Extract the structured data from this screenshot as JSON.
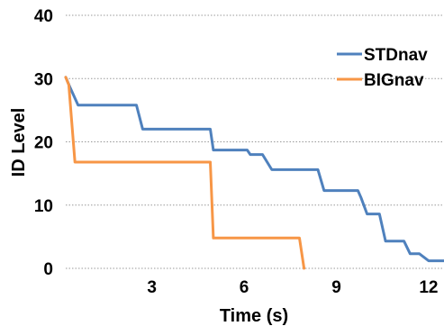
{
  "chart_data": {
    "type": "line",
    "title": "",
    "xlabel": "Time (s)",
    "ylabel": "ID Level",
    "xlim": [
      0.2,
      12.5
    ],
    "ylim": [
      0,
      40
    ],
    "xticks": [
      3,
      6,
      9,
      12
    ],
    "yticks": [
      0,
      10,
      20,
      30,
      40
    ],
    "grid": "horizontal dotted",
    "legend": "right",
    "series": [
      {
        "name": "STDnav",
        "color": "#4F81BD",
        "x": [
          0.2,
          0.35,
          0.6,
          1.7,
          2.5,
          2.7,
          4.9,
          5.0,
          6.1,
          6.2,
          6.6,
          6.9,
          7.7,
          8.4,
          8.6,
          9.7,
          9.8,
          10.0,
          10.4,
          10.6,
          11.2,
          11.4,
          11.7,
          12.0,
          12.5
        ],
        "y": [
          30.2,
          28.5,
          25.8,
          25.8,
          25.8,
          22.0,
          22.0,
          18.7,
          18.7,
          18.0,
          18.0,
          15.6,
          15.6,
          15.6,
          12.3,
          12.3,
          11.2,
          8.6,
          8.6,
          4.3,
          4.3,
          2.3,
          2.3,
          1.2,
          1.2
        ]
      },
      {
        "name": "BIGnav",
        "color": "#F79646",
        "x": [
          0.2,
          0.3,
          0.5,
          4.8,
          4.9,
          5.0,
          7.8,
          7.95
        ],
        "y": [
          30.2,
          29.0,
          16.8,
          16.8,
          16.8,
          4.8,
          4.8,
          0
        ]
      }
    ]
  }
}
